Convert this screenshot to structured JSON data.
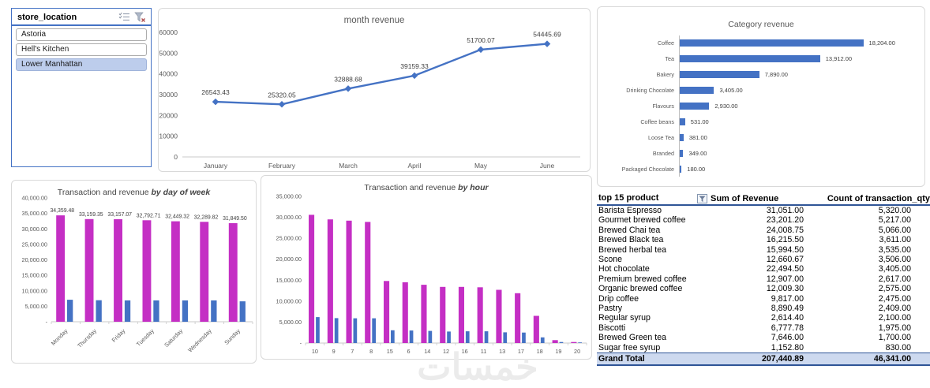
{
  "slicer": {
    "title": "store_location",
    "items": [
      {
        "label": "Astoria",
        "selected": false
      },
      {
        "label": "Hell's Kitchen",
        "selected": false
      },
      {
        "label": "Lower Manhattan",
        "selected": true
      }
    ]
  },
  "colors": {
    "accent_blue": "#4472C4",
    "magenta": "#C42FC4",
    "slicer_selected_bg": "#BDCDEC",
    "table_header_line": "#2F5597",
    "grand_total_bg": "#CDD9EF",
    "chart_border": "#D9D9D9"
  },
  "chart_data": [
    {
      "id": "month_revenue",
      "type": "line",
      "title": "month revenue",
      "x": [
        "January",
        "February",
        "March",
        "April",
        "May",
        "June"
      ],
      "values": [
        26543.43,
        25320.05,
        32888.68,
        39159.33,
        51700.07,
        54445.69
      ],
      "labels": [
        "26543.43",
        "25320.05",
        "32888.68",
        "39159.33",
        "51700.07",
        "54445.69"
      ],
      "ylim": [
        0,
        60000
      ],
      "yticks": [
        "60000",
        "50000",
        "40000",
        "30000",
        "20000",
        "10000",
        "0"
      ],
      "grid": false,
      "legend": "none",
      "color": "#4472C4"
    },
    {
      "id": "category_revenue",
      "type": "bar",
      "orientation": "horizontal",
      "title": "Category revenue",
      "categories": [
        "Coffee",
        "Tea",
        "Bakery",
        "Drinking Chocolate",
        "Flavours",
        "Coffee beans",
        "Loose Tea",
        "Branded",
        "Packaged Chocolate"
      ],
      "values": [
        18204,
        13912,
        7890,
        3405,
        2930,
        531,
        381,
        349,
        180
      ],
      "labels": [
        "18,204.00",
        "13,912.00",
        "7,890.00",
        "3,405.00",
        "2,930.00",
        "531.00",
        "381.00",
        "349.00",
        "180.00"
      ],
      "grid": false,
      "legend": "none",
      "color": "#4472C4"
    },
    {
      "id": "transaction_revenue_by_day_of_week",
      "type": "bar",
      "grouped": true,
      "title_regular": "Transaction and revenue ",
      "title_emphasis": "by day of week",
      "categories": [
        "Monday",
        "Thursday",
        "Friday",
        "Tuesday",
        "Saturday",
        "Wednesday",
        "Sunday"
      ],
      "series": [
        {
          "name": "revenue",
          "color": "#C42FC4",
          "values": [
            34359.48,
            33159.35,
            33157.07,
            32792.71,
            32449.32,
            32289.82,
            31849.5
          ],
          "labels": [
            "34,359.48",
            "33,159.35",
            "33,157.07",
            "32,792.71",
            "32,449.32",
            "32,289.82",
            "31,849.50"
          ]
        },
        {
          "name": "transactions",
          "color": "#4472C4",
          "values": [
            7100,
            6950,
            6900,
            6900,
            6900,
            6900,
            6600
          ]
        }
      ],
      "ylim": [
        0,
        40000
      ],
      "yticks": [
        "40,000.00",
        "35,000.00",
        "30,000.00",
        "25,000.00",
        "20,000.00",
        "15,000.00",
        "10,000.00",
        "5,000.00",
        "-"
      ],
      "rotate_x": true,
      "grid": false,
      "legend": "none"
    },
    {
      "id": "transaction_revenue_by_hour",
      "type": "bar",
      "grouped": true,
      "title_regular": "Transaction and revenue ",
      "title_emphasis": "by hour",
      "categories": [
        "10",
        "9",
        "7",
        "8",
        "15",
        "6",
        "14",
        "12",
        "16",
        "11",
        "13",
        "17",
        "18",
        "19",
        "20"
      ],
      "series": [
        {
          "name": "revenue",
          "color": "#C42FC4",
          "values": [
            30600,
            29500,
            29200,
            28900,
            14800,
            14500,
            13900,
            13400,
            13400,
            13300,
            12700,
            11900,
            6500,
            700,
            250
          ]
        },
        {
          "name": "transactions",
          "color": "#4472C4",
          "values": [
            6200,
            5950,
            5900,
            5900,
            3050,
            3000,
            2900,
            2750,
            2800,
            2800,
            2550,
            2500,
            1350,
            250,
            150
          ]
        }
      ],
      "ylim": [
        0,
        35000
      ],
      "yticks": [
        "35,000.00",
        "30,000.00",
        "25,000.00",
        "20,000.00",
        "15,000.00",
        "10,000.00",
        "5,000.00",
        "-"
      ],
      "rotate_x": false,
      "grid": false,
      "legend": "none"
    }
  ],
  "pivot_table": {
    "headers": [
      "top 15 product",
      "Sum of Revenue",
      "Count of transaction_qty"
    ],
    "rows": [
      [
        "Barista Espresso",
        "31,051.00",
        "5,320.00"
      ],
      [
        "Gourmet brewed coffee",
        "23,201.20",
        "5,217.00"
      ],
      [
        "Brewed Chai tea",
        "24,008.75",
        "5,066.00"
      ],
      [
        "Brewed Black tea",
        "16,215.50",
        "3,611.00"
      ],
      [
        "Brewed herbal tea",
        "15,994.50",
        "3,535.00"
      ],
      [
        "Scone",
        "12,660.67",
        "3,506.00"
      ],
      [
        "Hot chocolate",
        "22,494.50",
        "3,405.00"
      ],
      [
        "Premium brewed coffee",
        "12,907.00",
        "2,617.00"
      ],
      [
        "Organic brewed coffee",
        "12,009.30",
        "2,575.00"
      ],
      [
        "Drip coffee",
        "9,817.00",
        "2,475.00"
      ],
      [
        "Pastry",
        "8,890.49",
        "2,409.00"
      ],
      [
        "Regular syrup",
        "2,614.40",
        "2,100.00"
      ],
      [
        "Biscotti",
        "6,777.78",
        "1,975.00"
      ],
      [
        "Brewed Green tea",
        "7,646.00",
        "1,700.00"
      ],
      [
        "Sugar free syrup",
        "1,152.80",
        "830.00"
      ]
    ],
    "grand_total": [
      "Grand Total",
      "207,440.89",
      "46,341.00"
    ]
  },
  "watermark": {
    "text": "خمسات"
  }
}
